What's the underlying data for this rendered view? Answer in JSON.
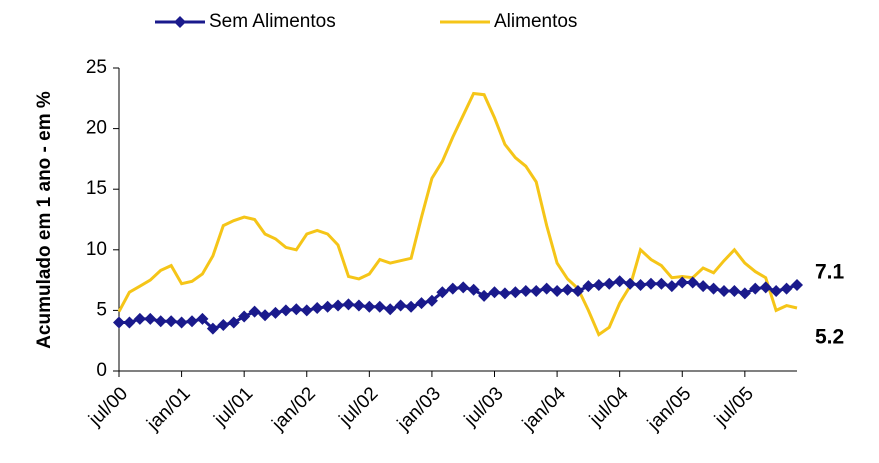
{
  "chart_data": {
    "type": "line",
    "y_label": "Acumulado em 1 ano - em %",
    "categories": [
      "jul/00",
      null,
      null,
      null,
      null,
      null,
      "jan/01",
      null,
      null,
      null,
      null,
      null,
      "jul/01",
      null,
      null,
      null,
      null,
      null,
      "jan/02",
      null,
      null,
      null,
      null,
      null,
      "jul/02",
      null,
      null,
      null,
      null,
      null,
      "jan/03",
      null,
      null,
      null,
      null,
      null,
      "jul/03",
      null,
      null,
      null,
      null,
      null,
      "jan/04",
      null,
      null,
      null,
      null,
      null,
      "jul/04",
      null,
      null,
      null,
      null,
      null,
      "jan/05",
      null,
      null,
      null,
      null,
      null,
      "jul/05",
      null,
      null,
      null,
      null,
      null
    ],
    "series": [
      {
        "name": "Sem Alimentos",
        "color": "#1a1a8c",
        "marker": "diamond",
        "values": [
          4.0,
          4.0,
          4.3,
          4.3,
          4.1,
          4.1,
          4.0,
          4.1,
          4.3,
          3.5,
          3.8,
          4.0,
          4.5,
          4.9,
          4.6,
          4.8,
          5.0,
          5.1,
          5.0,
          5.2,
          5.3,
          5.4,
          5.5,
          5.4,
          5.3,
          5.3,
          5.1,
          5.4,
          5.3,
          5.6,
          5.8,
          6.5,
          6.8,
          6.9,
          6.7,
          6.2,
          6.5,
          6.4,
          6.5,
          6.6,
          6.6,
          6.8,
          6.6,
          6.7,
          6.6,
          7.0,
          7.1,
          7.2,
          7.4,
          7.2,
          7.1,
          7.2,
          7.2,
          7.0,
          7.3,
          7.3,
          7.0,
          6.8,
          6.6,
          6.6,
          6.4,
          6.8,
          6.9,
          6.6,
          6.8,
          7.1
        ]
      },
      {
        "name": "Alimentos",
        "color": "#f5c518",
        "values": [
          4.9,
          6.5,
          7.0,
          7.5,
          8.3,
          8.7,
          7.2,
          7.4,
          8.0,
          9.5,
          12.0,
          12.4,
          12.7,
          12.5,
          11.3,
          10.9,
          10.2,
          10.0,
          11.3,
          11.6,
          11.3,
          10.4,
          7.8,
          7.6,
          8.0,
          9.2,
          8.9,
          9.1,
          9.3,
          12.7,
          15.9,
          17.3,
          19.3,
          21.1,
          22.9,
          22.8,
          20.9,
          18.7,
          17.6,
          16.9,
          15.6,
          12.0,
          8.9,
          7.6,
          6.8,
          5.0,
          3.0,
          3.6,
          5.6,
          7.0,
          10.0,
          9.2,
          8.7,
          7.7,
          7.8,
          7.7,
          8.5,
          8.1,
          9.1,
          10.0,
          8.9,
          8.2,
          7.7,
          5.0,
          5.4,
          5.2
        ]
      }
    ],
    "ylim": [
      0,
      25
    ],
    "yticks": [
      0,
      5,
      10,
      15,
      20,
      25
    ],
    "grid": false
  }
}
